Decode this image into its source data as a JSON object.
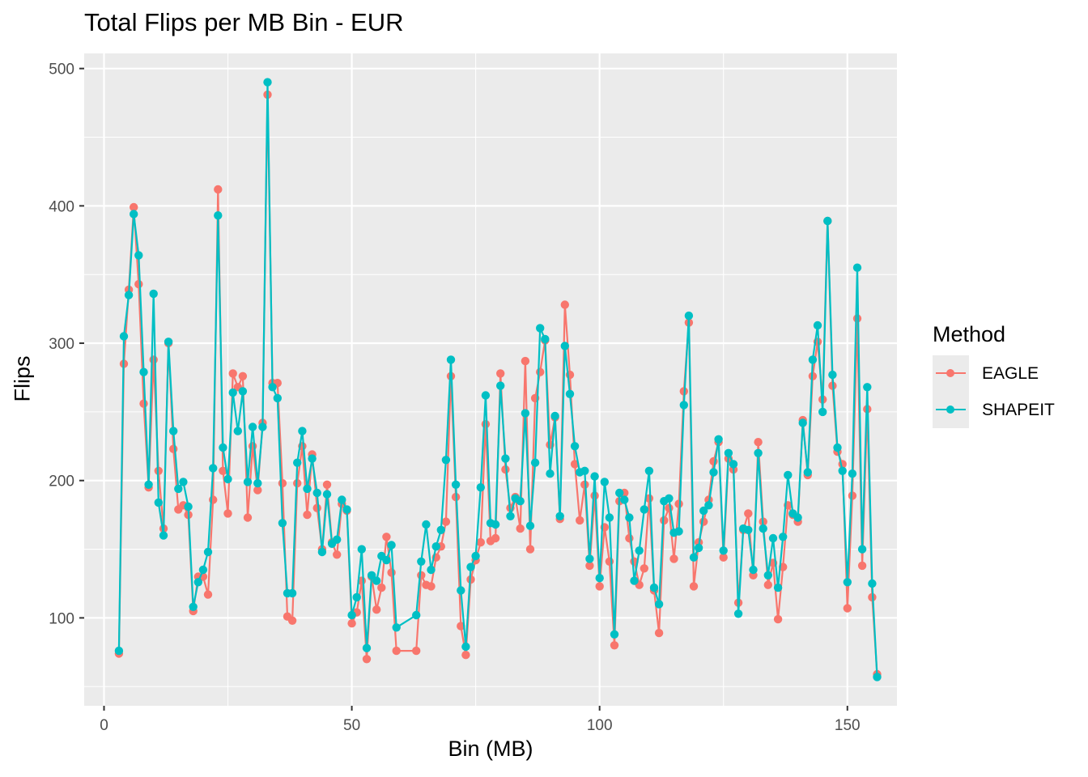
{
  "chart_data": {
    "type": "line",
    "title": "Total Flips per MB Bin - EUR",
    "xlabel": "Bin (MB)",
    "ylabel": "Flips",
    "xlim": [
      -4,
      160
    ],
    "ylim": [
      36,
      511
    ],
    "x_ticks": [
      0,
      50,
      100,
      150
    ],
    "y_ticks": [
      100,
      200,
      300,
      400,
      500
    ],
    "grid": true,
    "legend": {
      "title": "Method",
      "position": "right"
    },
    "series": [
      {
        "name": "EAGLE",
        "color": "#F8766D",
        "points": [
          [
            3,
            74
          ],
          [
            4,
            285
          ],
          [
            5,
            339
          ],
          [
            6,
            399
          ],
          [
            7,
            343
          ],
          [
            8,
            256
          ],
          [
            9,
            195
          ],
          [
            10,
            288
          ],
          [
            11,
            207
          ],
          [
            12,
            165
          ],
          [
            13,
            300
          ],
          [
            14,
            223
          ],
          [
            15,
            179
          ],
          [
            16,
            182
          ],
          [
            17,
            175
          ],
          [
            18,
            105
          ],
          [
            19,
            130
          ],
          [
            20,
            130
          ],
          [
            21,
            117
          ],
          [
            22,
            186
          ],
          [
            23,
            412
          ],
          [
            24,
            207
          ],
          [
            25,
            176
          ],
          [
            26,
            278
          ],
          [
            27,
            268
          ],
          [
            28,
            276
          ],
          [
            29,
            173
          ],
          [
            30,
            225
          ],
          [
            31,
            193
          ],
          [
            32,
            242
          ],
          [
            33,
            481
          ],
          [
            34,
            271
          ],
          [
            35,
            271
          ],
          [
            36,
            198
          ],
          [
            37,
            101
          ],
          [
            38,
            98
          ],
          [
            39,
            198
          ],
          [
            40,
            225
          ],
          [
            41,
            175
          ],
          [
            42,
            219
          ],
          [
            43,
            180
          ],
          [
            44,
            150
          ],
          [
            45,
            197
          ],
          [
            46,
            155
          ],
          [
            47,
            146
          ],
          [
            48,
            183
          ],
          [
            49,
            178
          ],
          [
            50,
            96
          ],
          [
            51,
            104
          ],
          [
            52,
            127
          ],
          [
            53,
            70
          ],
          [
            54,
            130
          ],
          [
            55,
            106
          ],
          [
            56,
            122
          ],
          [
            57,
            159
          ],
          [
            58,
            133
          ],
          [
            59,
            76
          ],
          [
            63,
            76
          ],
          [
            64,
            131
          ],
          [
            65,
            124
          ],
          [
            66,
            123
          ],
          [
            67,
            144
          ],
          [
            68,
            152
          ],
          [
            69,
            170
          ],
          [
            70,
            276
          ],
          [
            71,
            188
          ],
          [
            72,
            94
          ],
          [
            73,
            73
          ],
          [
            74,
            128
          ],
          [
            75,
            142
          ],
          [
            76,
            155
          ],
          [
            77,
            241
          ],
          [
            78,
            156
          ],
          [
            79,
            158
          ],
          [
            80,
            278
          ],
          [
            81,
            208
          ],
          [
            82,
            180
          ],
          [
            83,
            188
          ],
          [
            84,
            165
          ],
          [
            85,
            287
          ],
          [
            86,
            150
          ],
          [
            87,
            260
          ],
          [
            88,
            279
          ],
          [
            89,
            302
          ],
          [
            90,
            226
          ],
          [
            91,
            246
          ],
          [
            92,
            172
          ],
          [
            93,
            328
          ],
          [
            94,
            277
          ],
          [
            95,
            212
          ],
          [
            96,
            171
          ],
          [
            97,
            197
          ],
          [
            98,
            138
          ],
          [
            99,
            189
          ],
          [
            100,
            123
          ],
          [
            101,
            166
          ],
          [
            102,
            141
          ],
          [
            103,
            80
          ],
          [
            104,
            185
          ],
          [
            105,
            191
          ],
          [
            106,
            158
          ],
          [
            107,
            141
          ],
          [
            108,
            124
          ],
          [
            109,
            136
          ],
          [
            110,
            187
          ],
          [
            111,
            120
          ],
          [
            112,
            89
          ],
          [
            113,
            171
          ],
          [
            114,
            180
          ],
          [
            115,
            143
          ],
          [
            116,
            183
          ],
          [
            117,
            265
          ],
          [
            118,
            315
          ],
          [
            119,
            123
          ],
          [
            120,
            155
          ],
          [
            121,
            170
          ],
          [
            122,
            186
          ],
          [
            123,
            214
          ],
          [
            124,
            228
          ],
          [
            125,
            144
          ],
          [
            126,
            216
          ],
          [
            127,
            208
          ],
          [
            128,
            111
          ],
          [
            129,
            164
          ],
          [
            130,
            176
          ],
          [
            131,
            131
          ],
          [
            132,
            228
          ],
          [
            133,
            170
          ],
          [
            134,
            124
          ],
          [
            135,
            140
          ],
          [
            136,
            99
          ],
          [
            137,
            137
          ],
          [
            138,
            182
          ],
          [
            139,
            175
          ],
          [
            140,
            170
          ],
          [
            141,
            244
          ],
          [
            142,
            204
          ],
          [
            143,
            276
          ],
          [
            144,
            301
          ],
          [
            145,
            259
          ],
          [
            146,
            389
          ],
          [
            147,
            269
          ],
          [
            148,
            221
          ],
          [
            149,
            212
          ],
          [
            150,
            107
          ],
          [
            151,
            189
          ],
          [
            152,
            318
          ],
          [
            153,
            138
          ],
          [
            154,
            252
          ],
          [
            155,
            115
          ],
          [
            156,
            59
          ]
        ]
      },
      {
        "name": "SHAPEIT",
        "color": "#00BFC4",
        "points": [
          [
            3,
            76
          ],
          [
            4,
            305
          ],
          [
            5,
            335
          ],
          [
            6,
            394
          ],
          [
            7,
            364
          ],
          [
            8,
            279
          ],
          [
            9,
            197
          ],
          [
            10,
            336
          ],
          [
            11,
            184
          ],
          [
            12,
            160
          ],
          [
            13,
            301
          ],
          [
            14,
            236
          ],
          [
            15,
            194
          ],
          [
            16,
            199
          ],
          [
            17,
            181
          ],
          [
            18,
            108
          ],
          [
            19,
            126
          ],
          [
            20,
            135
          ],
          [
            21,
            148
          ],
          [
            22,
            209
          ],
          [
            23,
            393
          ],
          [
            24,
            224
          ],
          [
            25,
            201
          ],
          [
            26,
            264
          ],
          [
            27,
            236
          ],
          [
            28,
            265
          ],
          [
            29,
            199
          ],
          [
            30,
            239
          ],
          [
            31,
            198
          ],
          [
            32,
            239
          ],
          [
            33,
            490
          ],
          [
            34,
            268
          ],
          [
            35,
            260
          ],
          [
            36,
            169
          ],
          [
            37,
            118
          ],
          [
            38,
            118
          ],
          [
            39,
            213
          ],
          [
            40,
            236
          ],
          [
            41,
            194
          ],
          [
            42,
            216
          ],
          [
            43,
            191
          ],
          [
            44,
            148
          ],
          [
            45,
            190
          ],
          [
            46,
            154
          ],
          [
            47,
            157
          ],
          [
            48,
            186
          ],
          [
            49,
            179
          ],
          [
            50,
            102
          ],
          [
            51,
            115
          ],
          [
            52,
            150
          ],
          [
            53,
            78
          ],
          [
            54,
            131
          ],
          [
            55,
            127
          ],
          [
            56,
            145
          ],
          [
            57,
            142
          ],
          [
            58,
            153
          ],
          [
            59,
            93
          ],
          [
            63,
            102
          ],
          [
            64,
            141
          ],
          [
            65,
            168
          ],
          [
            66,
            135
          ],
          [
            67,
            152
          ],
          [
            68,
            164
          ],
          [
            69,
            215
          ],
          [
            70,
            288
          ],
          [
            71,
            197
          ],
          [
            72,
            120
          ],
          [
            73,
            79
          ],
          [
            74,
            137
          ],
          [
            75,
            145
          ],
          [
            76,
            195
          ],
          [
            77,
            262
          ],
          [
            78,
            169
          ],
          [
            79,
            168
          ],
          [
            80,
            269
          ],
          [
            81,
            216
          ],
          [
            82,
            174
          ],
          [
            83,
            187
          ],
          [
            84,
            185
          ],
          [
            85,
            249
          ],
          [
            86,
            167
          ],
          [
            87,
            213
          ],
          [
            88,
            311
          ],
          [
            89,
            303
          ],
          [
            90,
            205
          ],
          [
            91,
            247
          ],
          [
            92,
            174
          ],
          [
            93,
            298
          ],
          [
            94,
            263
          ],
          [
            95,
            225
          ],
          [
            96,
            206
          ],
          [
            97,
            207
          ],
          [
            98,
            143
          ],
          [
            99,
            203
          ],
          [
            100,
            129
          ],
          [
            101,
            199
          ],
          [
            102,
            173
          ],
          [
            103,
            88
          ],
          [
            104,
            191
          ],
          [
            105,
            186
          ],
          [
            106,
            173
          ],
          [
            107,
            127
          ],
          [
            108,
            149
          ],
          [
            109,
            179
          ],
          [
            110,
            207
          ],
          [
            111,
            122
          ],
          [
            112,
            110
          ],
          [
            113,
            185
          ],
          [
            114,
            187
          ],
          [
            115,
            162
          ],
          [
            116,
            163
          ],
          [
            117,
            255
          ],
          [
            118,
            320
          ],
          [
            119,
            144
          ],
          [
            120,
            151
          ],
          [
            121,
            178
          ],
          [
            122,
            182
          ],
          [
            123,
            206
          ],
          [
            124,
            230
          ],
          [
            125,
            149
          ],
          [
            126,
            220
          ],
          [
            127,
            212
          ],
          [
            128,
            103
          ],
          [
            129,
            165
          ],
          [
            130,
            164
          ],
          [
            131,
            135
          ],
          [
            132,
            220
          ],
          [
            133,
            165
          ],
          [
            134,
            131
          ],
          [
            135,
            158
          ],
          [
            136,
            122
          ],
          [
            137,
            159
          ],
          [
            138,
            204
          ],
          [
            139,
            176
          ],
          [
            140,
            173
          ],
          [
            141,
            242
          ],
          [
            142,
            206
          ],
          [
            143,
            288
          ],
          [
            144,
            313
          ],
          [
            145,
            250
          ],
          [
            146,
            389
          ],
          [
            147,
            277
          ],
          [
            148,
            224
          ],
          [
            149,
            207
          ],
          [
            150,
            126
          ],
          [
            151,
            205
          ],
          [
            152,
            355
          ],
          [
            153,
            150
          ],
          [
            154,
            268
          ],
          [
            155,
            125
          ],
          [
            156,
            57
          ]
        ]
      }
    ]
  }
}
